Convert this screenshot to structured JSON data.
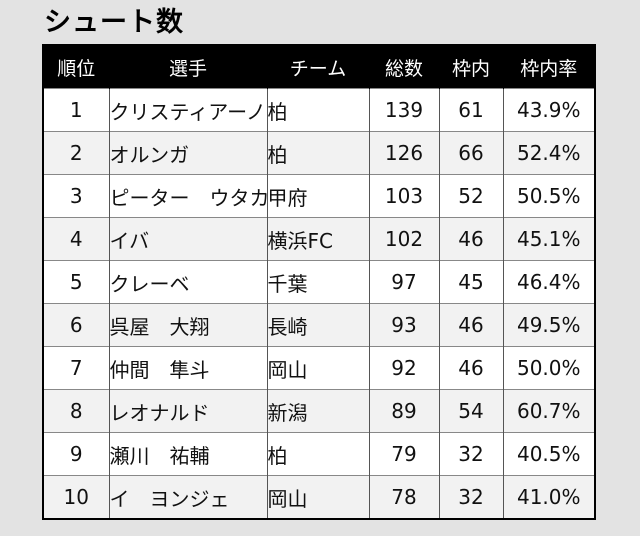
{
  "title": "シュート数",
  "headers": {
    "rank": "順位",
    "player": "選手",
    "team": "チーム",
    "total": "総数",
    "on_target": "枠内",
    "rate": "枠内率"
  },
  "rows": [
    {
      "rank": "1",
      "player": "クリスティアーノ",
      "team": "柏",
      "total": "139",
      "on_target": "61",
      "rate": "43.9%"
    },
    {
      "rank": "2",
      "player": "オルンガ",
      "team": "柏",
      "total": "126",
      "on_target": "66",
      "rate": "52.4%"
    },
    {
      "rank": "3",
      "player": "ピーター　ウタカ",
      "team": "甲府",
      "total": "103",
      "on_target": "52",
      "rate": "50.5%"
    },
    {
      "rank": "4",
      "player": "イバ",
      "team": "横浜FC",
      "total": "102",
      "on_target": "46",
      "rate": "45.1%"
    },
    {
      "rank": "5",
      "player": "クレーベ",
      "team": "千葉",
      "total": "97",
      "on_target": "45",
      "rate": "46.4%"
    },
    {
      "rank": "6",
      "player": "呉屋　大翔",
      "team": "長崎",
      "total": "93",
      "on_target": "46",
      "rate": "49.5%"
    },
    {
      "rank": "7",
      "player": "仲間　隼斗",
      "team": "岡山",
      "total": "92",
      "on_target": "46",
      "rate": "50.0%"
    },
    {
      "rank": "8",
      "player": "レオナルド",
      "team": "新潟",
      "total": "89",
      "on_target": "54",
      "rate": "60.7%"
    },
    {
      "rank": "9",
      "player": "瀬川　祐輔",
      "team": "柏",
      "total": "79",
      "on_target": "32",
      "rate": "40.5%"
    },
    {
      "rank": "10",
      "player": "イ　ヨンジェ",
      "team": "岡山",
      "total": "78",
      "on_target": "32",
      "rate": "41.0%"
    }
  ]
}
